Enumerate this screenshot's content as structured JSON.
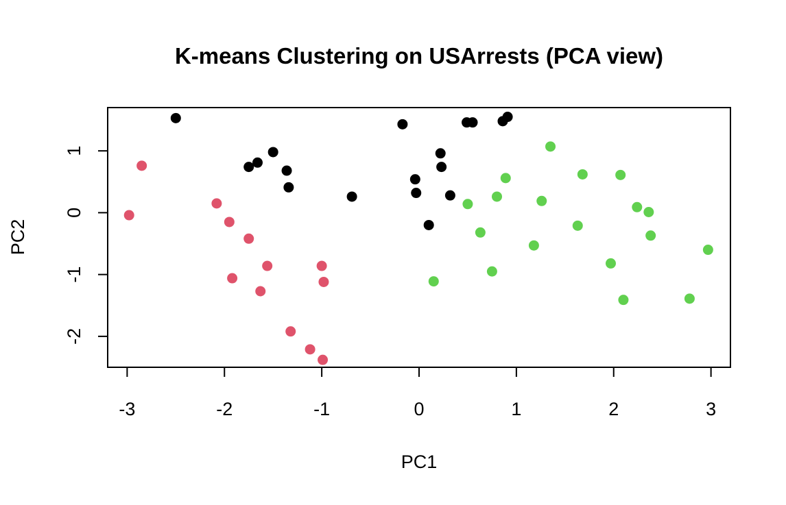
{
  "chart_data": {
    "type": "scatter",
    "title": "K-means Clustering on USArrests (PCA view)",
    "xlabel": "PC1",
    "ylabel": "PC2",
    "xlim": [
      -3.2,
      3.2
    ],
    "ylim": [
      -2.5,
      1.7
    ],
    "xticks": [
      -3,
      -2,
      -1,
      0,
      1,
      2,
      3
    ],
    "xtick_labels": [
      "-3",
      "-2",
      "-1",
      "0",
      "1",
      "2",
      "3"
    ],
    "yticks": [
      -2,
      -1,
      0,
      1
    ],
    "ytick_labels": [
      "-2",
      "-1",
      "0",
      "1"
    ],
    "grid": false,
    "legend": "none",
    "series": [
      {
        "color": "#000000",
        "points": [
          {
            "x": -2.5,
            "y": 1.53
          },
          {
            "x": -1.75,
            "y": 0.74
          },
          {
            "x": -1.66,
            "y": 0.81
          },
          {
            "x": -1.5,
            "y": 0.98
          },
          {
            "x": -1.36,
            "y": 0.68
          },
          {
            "x": -1.34,
            "y": 0.41
          },
          {
            "x": -0.69,
            "y": 0.26
          },
          {
            "x": -0.17,
            "y": 1.43
          },
          {
            "x": -0.04,
            "y": 0.54
          },
          {
            "x": -0.03,
            "y": 0.32
          },
          {
            "x": 0.1,
            "y": -0.2
          },
          {
            "x": 0.22,
            "y": 0.96
          },
          {
            "x": 0.23,
            "y": 0.74
          },
          {
            "x": 0.32,
            "y": 0.28
          },
          {
            "x": 0.49,
            "y": 1.46
          },
          {
            "x": 0.55,
            "y": 1.46
          },
          {
            "x": 0.86,
            "y": 1.48
          },
          {
            "x": 0.91,
            "y": 1.55
          }
        ]
      },
      {
        "color": "#DF536B",
        "points": [
          {
            "x": -2.98,
            "y": -0.04
          },
          {
            "x": -2.85,
            "y": 0.76
          },
          {
            "x": -2.08,
            "y": 0.15
          },
          {
            "x": -1.95,
            "y": -0.15
          },
          {
            "x": -1.92,
            "y": -1.06
          },
          {
            "x": -1.75,
            "y": -0.42
          },
          {
            "x": -1.56,
            "y": -0.86
          },
          {
            "x": -1.63,
            "y": -1.27
          },
          {
            "x": -1.32,
            "y": -1.92
          },
          {
            "x": -1.12,
            "y": -2.21
          },
          {
            "x": -0.99,
            "y": -2.38
          },
          {
            "x": -1.0,
            "y": -0.86
          },
          {
            "x": -0.98,
            "y": -1.12
          }
        ]
      },
      {
        "color": "#61D04F",
        "points": [
          {
            "x": 0.15,
            "y": -1.11
          },
          {
            "x": 0.5,
            "y": 0.14
          },
          {
            "x": 0.63,
            "y": -0.32
          },
          {
            "x": 0.75,
            "y": -0.95
          },
          {
            "x": 0.8,
            "y": 0.26
          },
          {
            "x": 0.89,
            "y": 0.56
          },
          {
            "x": 1.18,
            "y": -0.53
          },
          {
            "x": 1.26,
            "y": 0.19
          },
          {
            "x": 1.35,
            "y": 1.07
          },
          {
            "x": 1.63,
            "y": -0.21
          },
          {
            "x": 1.68,
            "y": 0.62
          },
          {
            "x": 1.97,
            "y": -0.82
          },
          {
            "x": 2.07,
            "y": 0.61
          },
          {
            "x": 2.1,
            "y": -1.41
          },
          {
            "x": 2.24,
            "y": 0.09
          },
          {
            "x": 2.36,
            "y": 0.01
          },
          {
            "x": 2.38,
            "y": -0.37
          },
          {
            "x": 2.78,
            "y": -1.39
          },
          {
            "x": 2.97,
            "y": -0.6
          }
        ]
      }
    ]
  }
}
